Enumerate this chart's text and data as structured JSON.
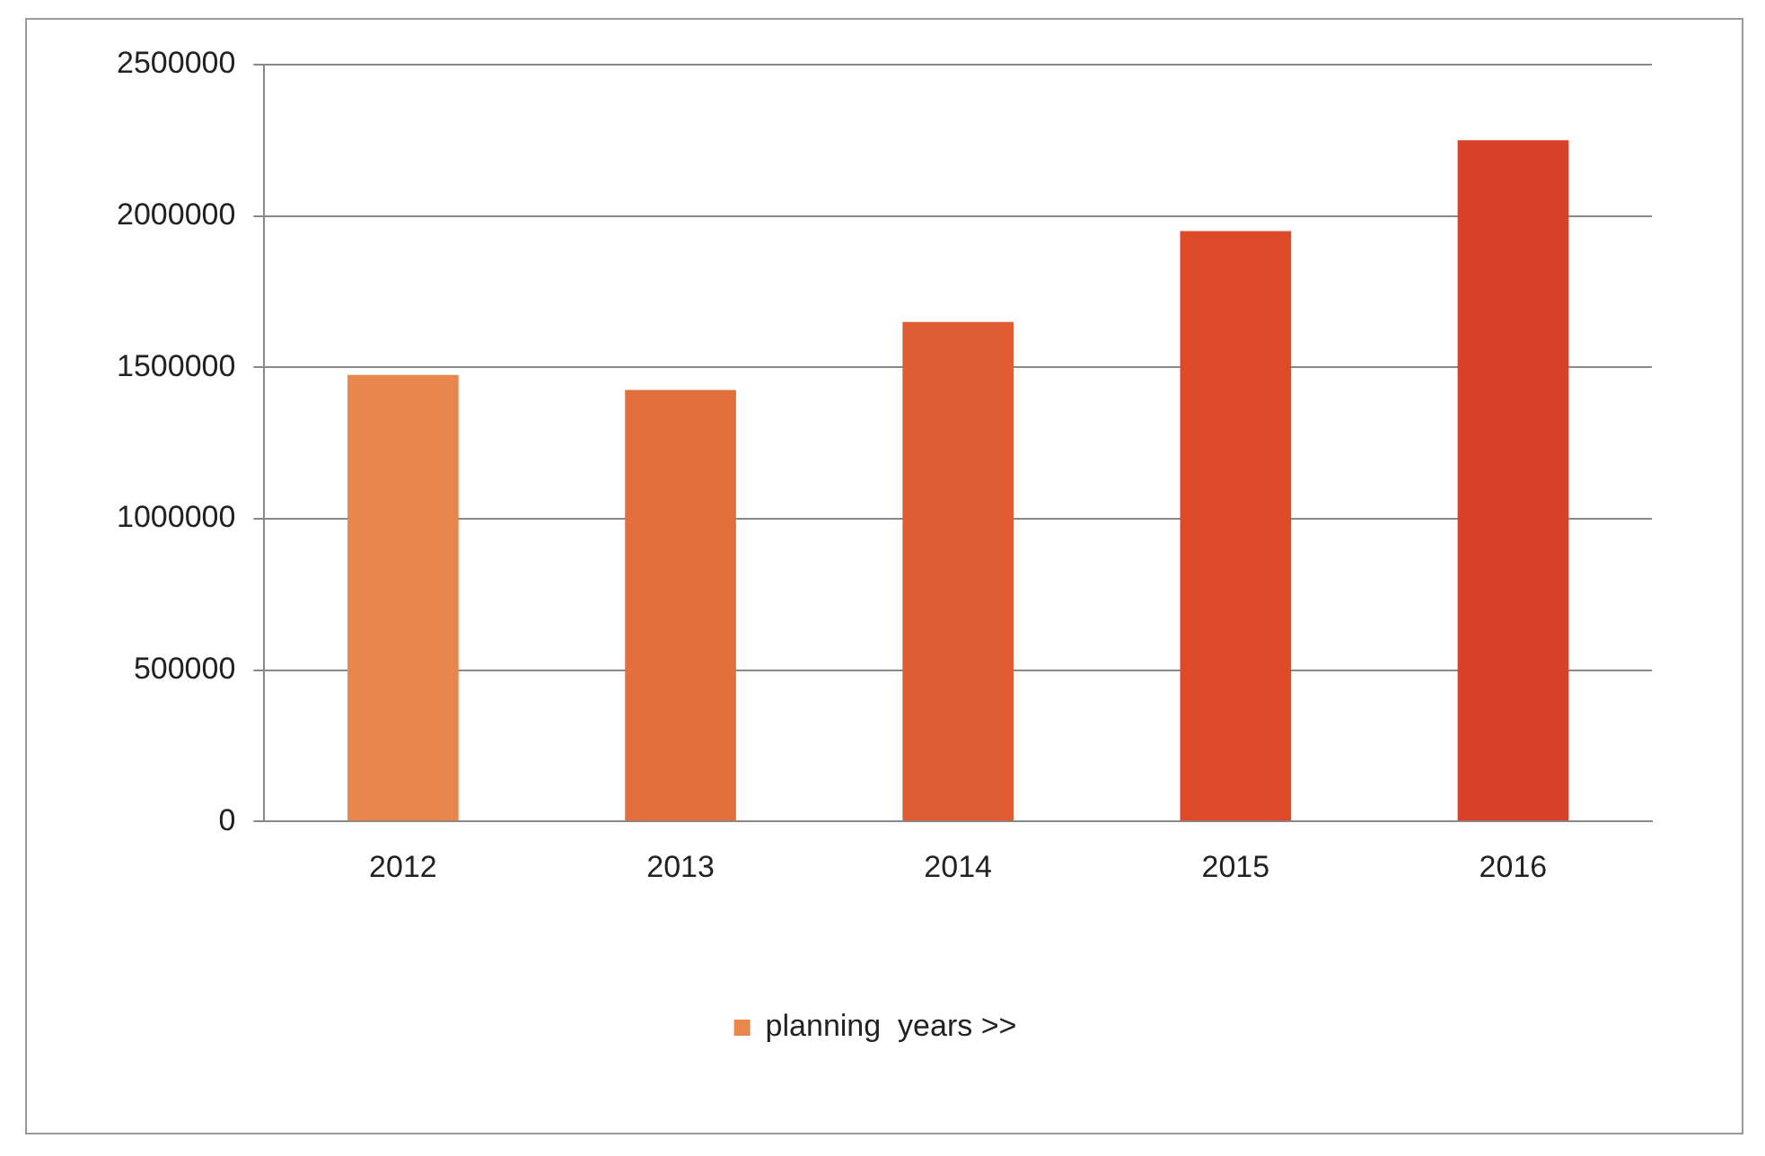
{
  "chart_data": {
    "type": "bar",
    "categories": [
      "2012",
      "2013",
      "2014",
      "2015",
      "2016"
    ],
    "series": [
      {
        "name": "planning  years >>",
        "colors": [
          "#e8864c",
          "#e2703c",
          "#e05c33",
          "#dc4a2a",
          "#d8402a"
        ],
        "values": [
          1475000,
          1425000,
          1650000,
          1950000,
          2250000
        ]
      }
    ],
    "ylim": [
      0,
      2500000
    ],
    "yticks": [
      0,
      500000,
      1000000,
      1500000,
      2000000,
      2500000
    ],
    "grid": "y",
    "legend": "bottom"
  }
}
